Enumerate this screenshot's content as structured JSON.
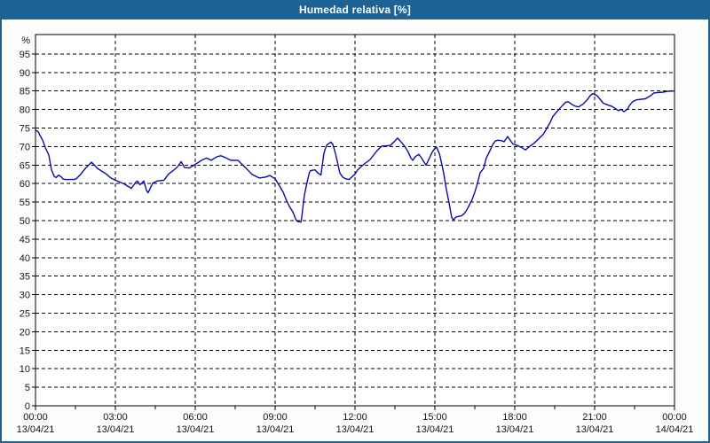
{
  "window": {
    "title": "Humedad relativa [%]"
  },
  "colors": {
    "titlebar_bg": "#1d6396",
    "titlebar_text": "#ffffff",
    "window_border": "#1d6396",
    "surface_bg": "#fcfdfa",
    "plot_bg": "#ffffff",
    "grid": "#000000",
    "axis": "#000000",
    "tick_label": "#14141e",
    "line": "#0a0aa6"
  },
  "chart_data": {
    "type": "line",
    "title": "Humedad relativa [%]",
    "ylabel": "%",
    "xlabel": "",
    "grid": "dashed",
    "legend_position": "none",
    "xlim_hours": [
      0,
      24
    ],
    "ylim": [
      0,
      100
    ],
    "y_ticks": [
      0,
      5,
      10,
      15,
      20,
      25,
      30,
      35,
      40,
      45,
      50,
      55,
      60,
      65,
      70,
      75,
      80,
      85,
      90,
      95
    ],
    "y_top_label": "%",
    "x_ticks": [
      {
        "hour": 0,
        "time": "00:00",
        "date": "13/04/21"
      },
      {
        "hour": 3,
        "time": "03:00",
        "date": "13/04/21"
      },
      {
        "hour": 6,
        "time": "06:00",
        "date": "13/04/21"
      },
      {
        "hour": 9,
        "time": "09:00",
        "date": "13/04/21"
      },
      {
        "hour": 12,
        "time": "12:00",
        "date": "13/04/21"
      },
      {
        "hour": 15,
        "time": "15:00",
        "date": "13/04/21"
      },
      {
        "hour": 18,
        "time": "18:00",
        "date": "13/04/21"
      },
      {
        "hour": 21,
        "time": "21:00",
        "date": "13/04/21"
      },
      {
        "hour": 24,
        "time": "00:00",
        "date": "14/04/21"
      }
    ],
    "x_minor_tick_interval_hours": 1.5,
    "series": [
      {
        "name": "Humedad relativa",
        "unit": "%",
        "points": [
          [
            0,
            74.4
          ],
          [
            0.1,
            74.0
          ],
          [
            0.17,
            73.0
          ],
          [
            0.27,
            71.7
          ],
          [
            0.37,
            69.7
          ],
          [
            0.5,
            67.7
          ],
          [
            0.6,
            63.7
          ],
          [
            0.7,
            62.0
          ],
          [
            0.77,
            61.6
          ],
          [
            0.87,
            62.3
          ],
          [
            0.97,
            61.8
          ],
          [
            1.03,
            61.3
          ],
          [
            1.1,
            61.1
          ],
          [
            1.43,
            61.1
          ],
          [
            1.53,
            61.3
          ],
          [
            1.7,
            62.5
          ],
          [
            1.87,
            64.1
          ],
          [
            2.0,
            65.0
          ],
          [
            2.1,
            65.8
          ],
          [
            2.33,
            64.1
          ],
          [
            2.5,
            63.3
          ],
          [
            2.67,
            62.5
          ],
          [
            2.83,
            61.5
          ],
          [
            3.0,
            60.9
          ],
          [
            3.33,
            59.9
          ],
          [
            3.6,
            58.7
          ],
          [
            3.77,
            60.4
          ],
          [
            3.83,
            60.7
          ],
          [
            3.93,
            59.7
          ],
          [
            4.07,
            60.7
          ],
          [
            4.17,
            58.1
          ],
          [
            4.23,
            57.5
          ],
          [
            4.4,
            60.1
          ],
          [
            4.57,
            60.7
          ],
          [
            4.83,
            60.9
          ],
          [
            5.0,
            62.6
          ],
          [
            5.17,
            63.5
          ],
          [
            5.33,
            64.5
          ],
          [
            5.47,
            65.9
          ],
          [
            5.6,
            64.3
          ],
          [
            5.77,
            64.2
          ],
          [
            6.0,
            65.2
          ],
          [
            6.27,
            66.4
          ],
          [
            6.43,
            66.9
          ],
          [
            6.6,
            66.3
          ],
          [
            6.83,
            67.3
          ],
          [
            6.97,
            67.5
          ],
          [
            7.1,
            67.1
          ],
          [
            7.33,
            66.3
          ],
          [
            7.6,
            66.3
          ],
          [
            7.8,
            64.9
          ],
          [
            7.97,
            63.7
          ],
          [
            8.13,
            62.5
          ],
          [
            8.4,
            61.5
          ],
          [
            8.67,
            61.8
          ],
          [
            8.8,
            62.2
          ],
          [
            9.0,
            61.3
          ],
          [
            9.17,
            59.3
          ],
          [
            9.3,
            57.7
          ],
          [
            9.4,
            55.9
          ],
          [
            9.53,
            53.9
          ],
          [
            9.67,
            52.3
          ],
          [
            9.77,
            50.4
          ],
          [
            9.83,
            49.8
          ],
          [
            9.97,
            49.6
          ],
          [
            10.0,
            50.9
          ],
          [
            10.05,
            54.1
          ],
          [
            10.1,
            56.9
          ],
          [
            10.17,
            59.3
          ],
          [
            10.28,
            62.9
          ],
          [
            10.33,
            63.5
          ],
          [
            10.5,
            63.7
          ],
          [
            10.6,
            62.9
          ],
          [
            10.72,
            62.3
          ],
          [
            10.78,
            65.3
          ],
          [
            10.83,
            68.1
          ],
          [
            10.9,
            69.7
          ],
          [
            10.95,
            70.5
          ],
          [
            11.1,
            71.2
          ],
          [
            11.17,
            70.5
          ],
          [
            11.22,
            69.3
          ],
          [
            11.28,
            67.7
          ],
          [
            11.33,
            66.1
          ],
          [
            11.38,
            64.5
          ],
          [
            11.43,
            62.9
          ],
          [
            11.5,
            62.1
          ],
          [
            11.55,
            61.7
          ],
          [
            11.65,
            61.3
          ],
          [
            11.78,
            61.1
          ],
          [
            11.93,
            62.1
          ],
          [
            12.0,
            62.5
          ],
          [
            12.1,
            63.7
          ],
          [
            12.22,
            64.5
          ],
          [
            12.33,
            65.2
          ],
          [
            12.57,
            66.5
          ],
          [
            12.83,
            68.9
          ],
          [
            13.0,
            70.1
          ],
          [
            13.17,
            70.2
          ],
          [
            13.33,
            70.3
          ],
          [
            13.47,
            71.3
          ],
          [
            13.6,
            72.3
          ],
          [
            13.77,
            70.9
          ],
          [
            13.9,
            69.7
          ],
          [
            14.0,
            68.5
          ],
          [
            14.1,
            66.9
          ],
          [
            14.17,
            66.3
          ],
          [
            14.27,
            67.3
          ],
          [
            14.4,
            67.9
          ],
          [
            14.5,
            66.9
          ],
          [
            14.6,
            65.7
          ],
          [
            14.67,
            65.0
          ],
          [
            14.77,
            66.5
          ],
          [
            14.9,
            68.5
          ],
          [
            15.0,
            69.5
          ],
          [
            15.07,
            69.7
          ],
          [
            15.17,
            68.1
          ],
          [
            15.27,
            64.9
          ],
          [
            15.33,
            62.8
          ],
          [
            15.43,
            58.5
          ],
          [
            15.53,
            54.9
          ],
          [
            15.63,
            50.9
          ],
          [
            15.7,
            50.2
          ],
          [
            15.8,
            51.0
          ],
          [
            16.0,
            51.3
          ],
          [
            16.1,
            51.9
          ],
          [
            16.2,
            52.9
          ],
          [
            16.3,
            54.3
          ],
          [
            16.4,
            55.7
          ],
          [
            16.5,
            57.7
          ],
          [
            16.6,
            60.1
          ],
          [
            16.7,
            62.9
          ],
          [
            16.83,
            64.1
          ],
          [
            16.93,
            66.9
          ],
          [
            17.07,
            68.9
          ],
          [
            17.17,
            70.5
          ],
          [
            17.27,
            71.5
          ],
          [
            17.37,
            71.7
          ],
          [
            17.5,
            71.6
          ],
          [
            17.6,
            71.3
          ],
          [
            17.73,
            72.7
          ],
          [
            17.83,
            71.7
          ],
          [
            17.93,
            70.7
          ],
          [
            18.0,
            70.5
          ],
          [
            18.13,
            70.2
          ],
          [
            18.27,
            69.7
          ],
          [
            18.4,
            69.1
          ],
          [
            18.57,
            70.1
          ],
          [
            18.73,
            70.9
          ],
          [
            18.9,
            72.1
          ],
          [
            19.07,
            73.3
          ],
          [
            19.17,
            74.5
          ],
          [
            19.33,
            76.5
          ],
          [
            19.43,
            78.1
          ],
          [
            19.57,
            79.3
          ],
          [
            19.67,
            80.1
          ],
          [
            19.77,
            80.9
          ],
          [
            19.9,
            81.9
          ],
          [
            20.0,
            82.1
          ],
          [
            20.17,
            81.3
          ],
          [
            20.27,
            80.9
          ],
          [
            20.4,
            80.7
          ],
          [
            20.57,
            81.5
          ],
          [
            20.73,
            82.7
          ],
          [
            20.83,
            83.7
          ],
          [
            20.93,
            84.3
          ],
          [
            21.1,
            83.7
          ],
          [
            21.23,
            82.5
          ],
          [
            21.33,
            81.7
          ],
          [
            21.47,
            81.3
          ],
          [
            21.67,
            80.8
          ],
          [
            21.77,
            80.3
          ],
          [
            21.9,
            79.7
          ],
          [
            22.0,
            80.1
          ],
          [
            22.1,
            79.4
          ],
          [
            22.23,
            80.1
          ],
          [
            22.33,
            81.3
          ],
          [
            22.43,
            82.1
          ],
          [
            22.57,
            82.6
          ],
          [
            22.9,
            82.9
          ],
          [
            23.1,
            83.7
          ],
          [
            23.23,
            84.5
          ],
          [
            23.57,
            84.7
          ],
          [
            23.73,
            84.9
          ],
          [
            24.0,
            85.0
          ]
        ]
      }
    ]
  }
}
